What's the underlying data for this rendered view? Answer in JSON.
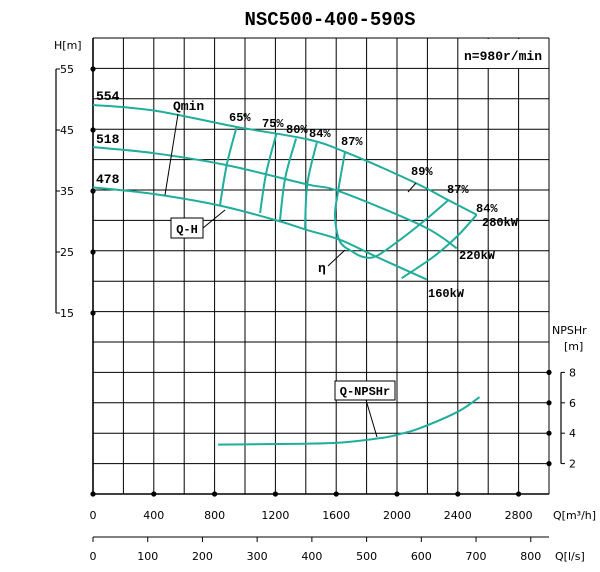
{
  "chart_data": {
    "type": "line",
    "title": "NSC500-400-590S",
    "speed_label": "n=980r/min",
    "colors": {
      "curve": "#1fae9b",
      "grid": "#000000"
    },
    "grid": true,
    "x_axis": {
      "label": "Q[m³/h]",
      "range": [
        0,
        3000
      ],
      "ticks": [
        0,
        400,
        800,
        1200,
        1600,
        2000,
        2400,
        2800
      ]
    },
    "x2_axis": {
      "label": "Q[l/s]",
      "ticks": [
        0,
        100,
        200,
        300,
        400,
        500,
        600,
        700,
        800
      ]
    },
    "y_axis": {
      "label": "H[m]",
      "ticks": [
        55,
        45,
        35,
        25,
        15
      ]
    },
    "y2_axis": {
      "label_line1": "NPSHr",
      "label_line2": "[m]",
      "ticks": [
        8,
        6,
        4,
        2
      ]
    },
    "head_curves": [
      {
        "name": "554",
        "points": [
          [
            0,
            49.1
          ],
          [
            400,
            48.2
          ],
          [
            945,
            45.5
          ],
          [
            1406,
            43.5
          ],
          [
            1658,
            41.4
          ],
          [
            2107,
            36.5
          ],
          [
            2338,
            33.5
          ],
          [
            2524,
            31.1
          ]
        ],
        "power_label": "280kW"
      },
      {
        "name": "518",
        "points": [
          [
            0,
            42.2
          ],
          [
            400,
            41.2
          ],
          [
            868,
            39.3
          ],
          [
            1406,
            36.1
          ],
          [
            1625,
            34.9
          ],
          [
            2173,
            29.2
          ],
          [
            2393,
            25.6
          ]
        ],
        "power_label": "220kW"
      },
      {
        "name": "478",
        "points": [
          [
            0,
            35.6
          ],
          [
            400,
            34.5
          ],
          [
            835,
            32.6
          ],
          [
            1219,
            30.1
          ],
          [
            1395,
            28.7
          ],
          [
            1625,
            27.0
          ],
          [
            1866,
            24.2
          ],
          [
            2195,
            20.5
          ]
        ],
        "power_label": "160kW"
      }
    ],
    "efficiency_lines": [
      {
        "label": "65%",
        "points": [
          [
            945,
            45.5
          ],
          [
            880,
            39.3
          ],
          [
            835,
            32.6
          ]
        ]
      },
      {
        "label": "75%",
        "points": [
          [
            1208,
            44.5
          ],
          [
            1140,
            38.0
          ],
          [
            1099,
            31.4
          ]
        ]
      },
      {
        "label": "80%",
        "points": [
          [
            1336,
            43.6
          ],
          [
            1265,
            37.2
          ],
          [
            1230,
            30.2
          ]
        ]
      },
      {
        "label": "84%",
        "points": [
          [
            1472,
            42.9
          ],
          [
            1410,
            36.2
          ],
          [
            1395,
            28.9
          ]
        ]
      },
      {
        "label": "87%",
        "points": [
          [
            1658,
            41.4
          ],
          [
            1612,
            34.9
          ],
          [
            1592,
            30.8
          ],
          [
            1625,
            26.7
          ],
          [
            1711,
            25.0
          ],
          [
            1776,
            24.2
          ],
          [
            1862,
            24.3
          ],
          [
            2020,
            27.0
          ],
          [
            2184,
            30.2
          ],
          [
            2338,
            33.5
          ]
        ],
        "label_right": "87%"
      },
      {
        "label": "84%",
        "points": [
          [
            2524,
            31.1
          ],
          [
            2393,
            27.5
          ],
          [
            2239,
            24.2
          ],
          [
            2031,
            20.7
          ]
        ],
        "is_right": true
      }
    ],
    "best_efficiency_label": "89%",
    "npsh_curve": {
      "label": "Q-NPSHr",
      "points": [
        [
          823,
          3.25
        ],
        [
          1397,
          3.31
        ],
        [
          1649,
          3.4
        ],
        [
          1901,
          3.69
        ],
        [
          2002,
          3.9
        ],
        [
          2153,
          4.34
        ],
        [
          2405,
          5.44
        ],
        [
          2543,
          6.38
        ]
      ]
    },
    "annotations": {
      "qmin": "Qmin",
      "qh": "Q-H",
      "eta": "η"
    }
  }
}
